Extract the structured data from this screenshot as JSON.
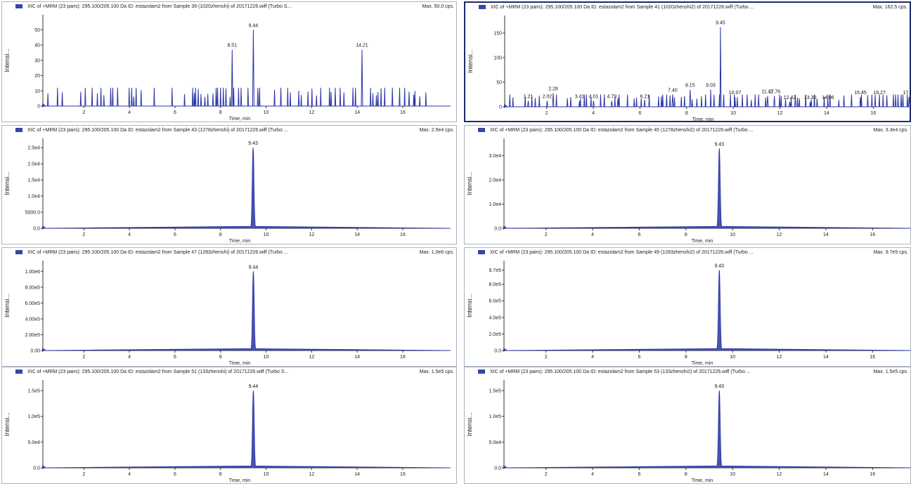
{
  "colors": {
    "trace": "#2b35a8",
    "axis": "#333333",
    "frame": "#a9b4c0",
    "selected_frame": "#1f2a6b",
    "marker": "#3b44a6"
  },
  "chart_data": [
    {
      "type": "line",
      "title": "XIC of +MRM (23 pairs): 295.100/205.100 Da ID: estazolam2 from Sample 39 (1020zhenshi) of 20171226.wiff (Turbo S...",
      "max_label": "Max. 50.0 cps.",
      "xlabel": "Time, min",
      "ylabel": "Intensi...",
      "xlim": [
        0.2,
        18.1
      ],
      "ylim": [
        0,
        58
      ],
      "xticks": [
        2,
        4,
        6,
        8,
        10,
        12,
        14,
        16
      ],
      "yticks": [
        {
          "v": 0,
          "t": "0"
        },
        {
          "v": 10,
          "t": "10"
        },
        {
          "v": 20,
          "t": "20"
        },
        {
          "v": 30,
          "t": "30"
        },
        {
          "v": 40,
          "t": "40"
        },
        {
          "v": 50,
          "t": "50"
        }
      ],
      "noise": "spiky",
      "noise_range": [
        0.4,
        17.6
      ],
      "noise_level": 12,
      "peaks": [
        {
          "x": 9.44,
          "y": 50,
          "label": "9.44"
        },
        {
          "x": 8.51,
          "y": 37,
          "label": "8.51"
        },
        {
          "x": 14.21,
          "y": 37,
          "label": "14.21"
        }
      ]
    },
    {
      "type": "line",
      "title": "XIC of +MRM (23 pairs): 295.100/205.100 Da ID: estazolam2 from Sample 41 (1020zhenshi2) of 20171226.wiff (Turbo ...",
      "max_label": "Max. 162.5 cps.",
      "xlabel": "Time, min",
      "ylabel": "Intensi...",
      "xlim": [
        0.2,
        17.8
      ],
      "ylim": [
        0,
        180
      ],
      "xticks": [
        2,
        4,
        6,
        8,
        10,
        12,
        14,
        16
      ],
      "yticks": [
        {
          "v": 0,
          "t": "0"
        },
        {
          "v": 50,
          "t": "50"
        },
        {
          "v": 100,
          "t": "100"
        },
        {
          "v": 150,
          "t": "150"
        }
      ],
      "noise": "spiky",
      "noise_range": [
        0.4,
        17.8
      ],
      "noise_level": 25,
      "peaks": [
        {
          "x": 9.45,
          "y": 162,
          "label": "9.45"
        },
        {
          "x": 1.21,
          "y": 12,
          "label": "1.21"
        },
        {
          "x": 2.02,
          "y": 12,
          "label": "2.02"
        },
        {
          "x": 2.28,
          "y": 28,
          "label": "2.28"
        },
        {
          "x": 3.41,
          "y": 12,
          "label": "3.41"
        },
        {
          "x": 4.01,
          "y": 12,
          "label": "4.01"
        },
        {
          "x": 4.79,
          "y": 12,
          "label": "4.79"
        },
        {
          "x": 6.21,
          "y": 12,
          "label": "6.21"
        },
        {
          "x": 7.4,
          "y": 25,
          "label": "7.40"
        },
        {
          "x": 8.15,
          "y": 35,
          "label": "8.15"
        },
        {
          "x": 9.03,
          "y": 35,
          "label": "9.03"
        },
        {
          "x": 10.07,
          "y": 20,
          "label": "10.07"
        },
        {
          "x": 11.47,
          "y": 22,
          "label": "11.47"
        },
        {
          "x": 11.76,
          "y": 22,
          "label": "11.76"
        },
        {
          "x": 12.42,
          "y": 10,
          "label": "12.42"
        },
        {
          "x": 13.3,
          "y": 10,
          "label": "13.30"
        },
        {
          "x": 14.06,
          "y": 10,
          "label": "14.06"
        },
        {
          "x": 15.45,
          "y": 20,
          "label": "15.45"
        },
        {
          "x": 16.27,
          "y": 20,
          "label": "16.27"
        },
        {
          "x": 17.54,
          "y": 20,
          "label": "17.54"
        }
      ]
    },
    {
      "type": "line",
      "title": "XIC of +MRM (23 pairs): 295.100/205.100 Da ID: estazolam2 from Sample 43 (1278zhenshi) of 20171226.wiff (Turbo ...",
      "max_label": "Max. 2.5e4 cps.",
      "xlabel": "Time, min",
      "ylabel": "Intensi...",
      "xlim": [
        0.2,
        18.1
      ],
      "ylim": [
        0,
        27000
      ],
      "xticks": [
        2,
        4,
        6,
        8,
        10,
        12,
        14,
        16
      ],
      "yticks": [
        {
          "v": 0,
          "t": "0.0"
        },
        {
          "v": 5000,
          "t": "5000.0"
        },
        {
          "v": 10000,
          "t": "1.0e4"
        },
        {
          "v": 15000,
          "t": "1.5e4"
        },
        {
          "v": 20000,
          "t": "2.0e4"
        },
        {
          "v": 25000,
          "t": "2.5e4"
        }
      ],
      "noise": "flat",
      "peaks": [
        {
          "x": 9.43,
          "y": 25000,
          "label": "9.43"
        }
      ]
    },
    {
      "type": "line",
      "title": "XIC of +MRM (23 pairs): 295.100/205.100 Da ID: estazolam2 from Sample 45 (1278zhenshi2) of 20171226.wiff (Turbo ...",
      "max_label": "Max. 3.3e4 cps.",
      "xlabel": "Time, min",
      "ylabel": "Intensi...",
      "xlim": [
        0.2,
        17.8
      ],
      "ylim": [
        0,
        36000
      ],
      "xticks": [
        2,
        4,
        6,
        8,
        10,
        12,
        14,
        16
      ],
      "yticks": [
        {
          "v": 0,
          "t": "0.0"
        },
        {
          "v": 10000,
          "t": "1.0e4"
        },
        {
          "v": 20000,
          "t": "2.0e4"
        },
        {
          "v": 30000,
          "t": "3.0e4"
        }
      ],
      "noise": "flat",
      "peaks": [
        {
          "x": 9.43,
          "y": 33000,
          "label": "9.43"
        }
      ]
    },
    {
      "type": "line",
      "title": "XIC of +MRM (23 pairs): 295.100/205.100 Da ID: estazolam2 from Sample 47 (1283zhenshi) of 20171226.wiff (Turbo ...",
      "max_label": "Max. 1.0e6 cps.",
      "xlabel": "Time, min",
      "ylabel": "Intensi...",
      "xlim": [
        0.2,
        18.1
      ],
      "ylim": [
        0,
        1100000
      ],
      "xticks": [
        2,
        4,
        6,
        8,
        10,
        12,
        14,
        16
      ],
      "yticks": [
        {
          "v": 0,
          "t": "0.00"
        },
        {
          "v": 200000,
          "t": "2.00e5"
        },
        {
          "v": 400000,
          "t": "4.00e5"
        },
        {
          "v": 600000,
          "t": "6.00e5"
        },
        {
          "v": 800000,
          "t": "8.00e5"
        },
        {
          "v": 1000000,
          "t": "1.00e6"
        }
      ],
      "noise": "flat",
      "peaks": [
        {
          "x": 9.44,
          "y": 1000000,
          "label": "9.44"
        }
      ]
    },
    {
      "type": "line",
      "title": "XIC of +MRM (23 pairs): 295.100/205.100 Da ID: estazolam2 from Sample 49 (1283zhenshi2) of 20171226.wiff (Turbo ...",
      "max_label": "Max. 9.7e5 cps.",
      "xlabel": "Time, min",
      "ylabel": "Intensi...",
      "xlim": [
        0.2,
        17.8
      ],
      "ylim": [
        0,
        1050000
      ],
      "xticks": [
        2,
        4,
        6,
        8,
        10,
        12,
        14,
        16
      ],
      "yticks": [
        {
          "v": 0,
          "t": "0.0"
        },
        {
          "v": 200000,
          "t": "2.0e5"
        },
        {
          "v": 400000,
          "t": "4.0e5"
        },
        {
          "v": 600000,
          "t": "6.0e5"
        },
        {
          "v": 800000,
          "t": "8.0e5"
        },
        {
          "v": 970000,
          "t": "9.7e5"
        }
      ],
      "noise": "flat",
      "peaks": [
        {
          "x": 9.43,
          "y": 970000,
          "label": "9.43"
        }
      ]
    },
    {
      "type": "line",
      "title": "XIC of +MRM (23 pairs): 295.100/205.100 Da ID: estazolam2 from Sample 51 (133zhenshi) of 20171226.wiff (Turbo S...",
      "max_label": "Max. 1.5e5 cps.",
      "xlabel": "Time, min",
      "ylabel": "Intensi...",
      "xlim": [
        0.2,
        18.1
      ],
      "ylim": [
        0,
        165000
      ],
      "xticks": [
        2,
        4,
        6,
        8,
        10,
        12,
        14,
        16
      ],
      "yticks": [
        {
          "v": 0,
          "t": "0.0"
        },
        {
          "v": 50000,
          "t": "5.0e4"
        },
        {
          "v": 100000,
          "t": "1.0e5"
        },
        {
          "v": 150000,
          "t": "1.5e5"
        }
      ],
      "noise": "flat",
      "peaks": [
        {
          "x": 9.44,
          "y": 150000,
          "label": "9.44"
        }
      ]
    },
    {
      "type": "line",
      "title": "XIC of +MRM (23 pairs): 295.100/205.100 Da ID: estazolam2 from Sample 53 (133zhenshi2) of 20171226.wiff (Turbo ...",
      "max_label": "Max. 1.5e5 cps.",
      "xlabel": "Time, min",
      "ylabel": "Intensi...",
      "xlim": [
        0.2,
        17.8
      ],
      "ylim": [
        0,
        165000
      ],
      "xticks": [
        2,
        4,
        6,
        8,
        10,
        12,
        14,
        16
      ],
      "yticks": [
        {
          "v": 0,
          "t": "0.0"
        },
        {
          "v": 50000,
          "t": "5.0e4"
        },
        {
          "v": 100000,
          "t": "1.0e5"
        },
        {
          "v": 150000,
          "t": "1.5e5"
        }
      ],
      "noise": "flat",
      "peaks": [
        {
          "x": 9.43,
          "y": 150000,
          "label": "9.43"
        }
      ]
    }
  ]
}
